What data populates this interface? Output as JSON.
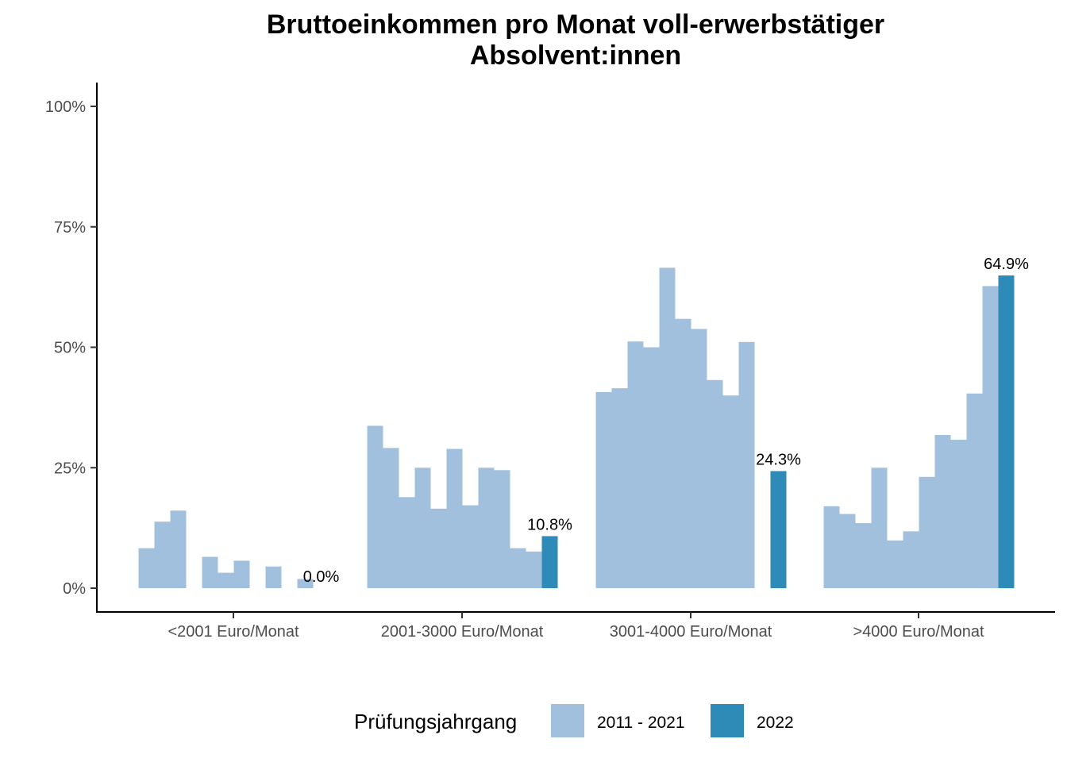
{
  "chart_data": {
    "type": "bar",
    "title_lines": [
      "Bruttoeinkommen pro Monat voll-erwerbstätiger",
      "Absolvent:innen"
    ],
    "categories": [
      "<2001 Euro/Monat",
      "2001-3000 Euro/Monat",
      "3001-4000 Euro/Monat",
      ">4000 Euro/Monat"
    ],
    "ylim": [
      0,
      1.05
    ],
    "yticks": [
      0,
      0.25,
      0.5,
      0.75,
      1.0
    ],
    "ytick_labels": [
      "0%",
      "25%",
      "50%",
      "75%",
      "100%"
    ],
    "bars_per_group": 11,
    "series": [
      {
        "name": "2011 - 2021",
        "color": "#a1c0dd",
        "groups": [
          [
            0.083,
            0.138,
            0.161,
            null,
            0.065,
            0.032,
            0.057,
            null,
            0.045,
            null,
            0.019
          ],
          [
            0.337,
            0.291,
            0.189,
            0.25,
            0.165,
            0.289,
            0.172,
            0.25,
            0.245,
            0.083,
            0.076
          ],
          [
            0.407,
            0.415,
            0.512,
            0.5,
            0.665,
            0.559,
            0.538,
            0.432,
            0.4,
            0.511,
            null
          ],
          [
            0.17,
            0.154,
            0.135,
            0.25,
            0.099,
            0.118,
            0.231,
            0.318,
            0.308,
            0.404,
            0.627
          ]
        ]
      },
      {
        "name": "2022",
        "color": "#2e8bb8",
        "values": [
          0.0,
          0.108,
          0.243,
          0.649
        ],
        "labels": [
          "0.0%",
          "10.8%",
          "24.3%",
          "64.9%"
        ]
      }
    ],
    "legend": {
      "title": "Prüfungsjahrgang",
      "entries": [
        "2011 - 2021",
        "2022"
      ],
      "position": "bottom"
    },
    "grid": false
  }
}
